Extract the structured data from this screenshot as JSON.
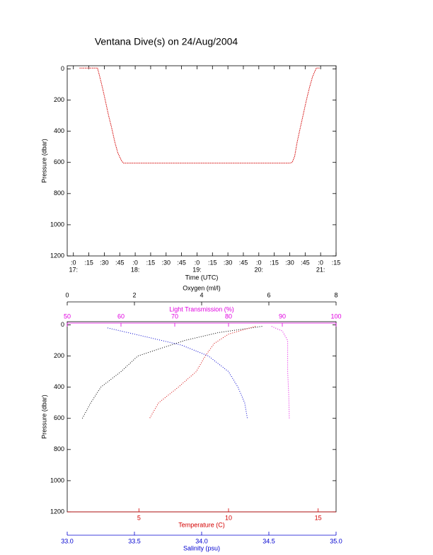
{
  "chart_data": [
    {
      "type": "line",
      "title": "Ventana Dive(s) on 24/Aug/2004",
      "xlabel": "Time (UTC)",
      "ylabel": "Pressure (dbar)",
      "color": "#d40000",
      "y_inverted": true,
      "x": [
        17.1,
        17.39,
        17.42,
        17.47,
        17.52,
        17.57,
        17.62,
        17.67,
        17.72,
        17.78,
        17.81,
        20.5,
        20.54,
        20.58,
        20.62,
        20.67,
        20.72,
        20.77,
        20.82,
        20.87,
        20.93,
        20.98
      ],
      "values": [
        -5,
        -5,
        40,
        120,
        210,
        300,
        380,
        470,
        540,
        590,
        605,
        605,
        600,
        560,
        470,
        380,
        290,
        200,
        120,
        50,
        -5,
        -5
      ],
      "xlim": [
        16.9,
        21.25
      ],
      "ylim": [
        -20,
        1200
      ],
      "xticks": [
        {
          "value": 17,
          "label": ":0"
        },
        {
          "value": 17.25,
          "label": ":15"
        },
        {
          "value": 17.5,
          "label": ":30"
        },
        {
          "value": 17.75,
          "label": ":45"
        },
        {
          "value": 18,
          "label": ":0"
        },
        {
          "value": 18.25,
          "label": ":15"
        },
        {
          "value": 18.5,
          "label": ":30"
        },
        {
          "value": 18.75,
          "label": ":45"
        },
        {
          "value": 19,
          "label": ":0"
        },
        {
          "value": 19.25,
          "label": ":15"
        },
        {
          "value": 19.5,
          "label": ":30"
        },
        {
          "value": 19.75,
          "label": ":45"
        },
        {
          "value": 20,
          "label": ":0"
        },
        {
          "value": 20.25,
          "label": ":15"
        },
        {
          "value": 20.5,
          "label": ":30"
        },
        {
          "value": 20.75,
          "label": ":45"
        },
        {
          "value": 21,
          "label": ":0"
        },
        {
          "value": 21.25,
          "label": ":15"
        }
      ],
      "xtick_hours": [
        {
          "value": 17,
          "label": "17:"
        },
        {
          "value": 18,
          "label": "18:"
        },
        {
          "value": 19,
          "label": "19:"
        },
        {
          "value": 20,
          "label": "20:"
        },
        {
          "value": 21,
          "label": "21:"
        }
      ],
      "yticks": [
        0,
        200,
        400,
        600,
        800,
        1000,
        1200
      ]
    },
    {
      "type": "profile",
      "ylabel": "Pressure (dbar)",
      "y_inverted": true,
      "ylim": [
        -20,
        1200
      ],
      "yticks": [
        0,
        200,
        400,
        600,
        800,
        1000,
        1200
      ],
      "axes": [
        {
          "label": "Oxygen (ml/l)",
          "position": "top",
          "color": "#000000",
          "xlim": [
            0,
            8
          ],
          "xticks": [
            0,
            2,
            4,
            6,
            8
          ],
          "x": [
            5.8,
            4.5,
            3.5,
            2.8,
            2.1,
            1.6,
            1.0,
            0.7,
            0.45
          ],
          "values": [
            10,
            50,
            100,
            150,
            200,
            300,
            400,
            500,
            600
          ]
        },
        {
          "label": "Light Transmission (%)",
          "position": "top",
          "color": "#e000e0",
          "xlim": [
            50,
            100
          ],
          "xticks": [
            50,
            60,
            70,
            80,
            90,
            100
          ],
          "x": [
            88,
            90,
            91,
            91,
            91.2,
            91.3
          ],
          "values": [
            10,
            40,
            100,
            300,
            450,
            600
          ]
        },
        {
          "label": "Temperature (C)",
          "position": "bottom",
          "color": "#d40000",
          "xlim": [
            1,
            16
          ],
          "xticks": [
            5,
            10,
            15
          ],
          "x": [
            11.5,
            10,
            9.2,
            8.7,
            8.2,
            7.2,
            6.1,
            5.6
          ],
          "values": [
            10,
            60,
            120,
            200,
            300,
            400,
            500,
            600
          ]
        },
        {
          "label": "Salinity (psu)",
          "position": "bottom",
          "color": "#0000d0",
          "xlim": [
            33,
            35
          ],
          "xticks": [
            {
              "value": 33,
              "label": "33.0"
            },
            33.5,
            {
              "value": 34,
              "label": "34.0"
            },
            34.5,
            {
              "value": 35,
              "label": "35.0"
            }
          ],
          "x": [
            33.3,
            33.6,
            33.85,
            34.05,
            34.2,
            34.27,
            34.32,
            34.34
          ],
          "values": [
            20,
            80,
            130,
            200,
            300,
            400,
            500,
            600
          ]
        }
      ]
    }
  ]
}
